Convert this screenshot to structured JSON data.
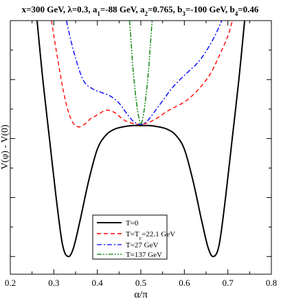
{
  "chart_data": {
    "type": "line",
    "title": "x=300 GeV, λ=0.3, a",
    "title_parts": {
      "base": "x=300 GeV, λ=0.3, a",
      "a1_sub": "1",
      "a1_rest": "=-88 GeV, a",
      "a2_sub": "2",
      "a2_rest": "=0.765, b",
      "b3_sub": "3",
      "b3_rest": "=-100 GeV, b",
      "b4_sub": "4",
      "b4_rest": "=0.46"
    },
    "xlabel": "α/π",
    "ylabel": "V(φ) - V(0)",
    "xlim": [
      0.2,
      0.8
    ],
    "ylim": [
      -1.15,
      1.0
    ],
    "x_ticks": [
      0.2,
      0.3,
      0.4,
      0.5,
      0.6,
      0.7,
      0.8
    ],
    "x_tick_labels": [
      "0.2",
      "0.3",
      "0.4",
      "0.5",
      "0.6",
      "0.7",
      "0.8"
    ],
    "y_tick_labels_shown": false,
    "grid": false,
    "legend_position": "bottom-center",
    "series": [
      {
        "name": "T=0",
        "color": "#000000",
        "dash": "solid",
        "x": [
          0.2615,
          0.275,
          0.29,
          0.305,
          0.32,
          0.333,
          0.345,
          0.36,
          0.38,
          0.4,
          0.42,
          0.44,
          0.46,
          0.48,
          0.5,
          0.52,
          0.54,
          0.56,
          0.58,
          0.6,
          0.62,
          0.64,
          0.655,
          0.667,
          0.68,
          0.695,
          0.71,
          0.725,
          0.7385
        ],
        "y": [
          1.0,
          0.49,
          0.0,
          -0.49,
          -0.9,
          -1.0,
          -0.93,
          -0.7,
          -0.36,
          -0.09,
          0.03,
          0.08,
          0.1,
          0.11,
          0.11,
          0.11,
          0.1,
          0.08,
          0.03,
          -0.09,
          -0.36,
          -0.7,
          -0.93,
          -1.0,
          -0.9,
          -0.49,
          0.0,
          0.49,
          1.0
        ]
      },
      {
        "name": "T=Tc=22.1 GeV",
        "name_base": "T=T",
        "name_sub": "c",
        "name_rest": "=22.1 GeV",
        "color": "#ff0000",
        "dash": "dashed",
        "x": [
          0.2945,
          0.31,
          0.325,
          0.34,
          0.355,
          0.37,
          0.385,
          0.4,
          0.42,
          0.44,
          0.46,
          0.48,
          0.5,
          0.52,
          0.54,
          0.56,
          0.58,
          0.6,
          0.62,
          0.64,
          0.66,
          0.68,
          0.7,
          0.7105
        ],
        "y": [
          1.0,
          0.65,
          0.35,
          0.16,
          0.1,
          0.12,
          0.17,
          0.2,
          0.24,
          0.22,
          0.16,
          0.13,
          0.12,
          0.14,
          0.18,
          0.23,
          0.27,
          0.31,
          0.37,
          0.45,
          0.55,
          0.7,
          0.87,
          1.0
        ]
      },
      {
        "name": "T=27 GeV",
        "color": "#0000ff",
        "dash": "dash-dot",
        "x": [
          0.329,
          0.34,
          0.355,
          0.37,
          0.39,
          0.41,
          0.43,
          0.45,
          0.47,
          0.485,
          0.5,
          0.515,
          0.53,
          0.55,
          0.57,
          0.59,
          0.61,
          0.63,
          0.65,
          0.67,
          0.686
        ],
        "y": [
          1.0,
          0.82,
          0.62,
          0.48,
          0.42,
          0.39,
          0.36,
          0.3,
          0.2,
          0.14,
          0.12,
          0.15,
          0.22,
          0.32,
          0.42,
          0.5,
          0.57,
          0.64,
          0.74,
          0.87,
          1.0
        ]
      },
      {
        "name": "T=137 GeV",
        "color": "#008000",
        "dash": "dash-dot-dot",
        "x": [
          0.474,
          0.478,
          0.482,
          0.487,
          0.492,
          0.497,
          0.5,
          0.503,
          0.508,
          0.513,
          0.518,
          0.522,
          0.526
        ],
        "y": [
          1.0,
          0.8,
          0.59,
          0.4,
          0.25,
          0.15,
          0.12,
          0.15,
          0.25,
          0.4,
          0.59,
          0.8,
          1.0
        ]
      }
    ]
  }
}
